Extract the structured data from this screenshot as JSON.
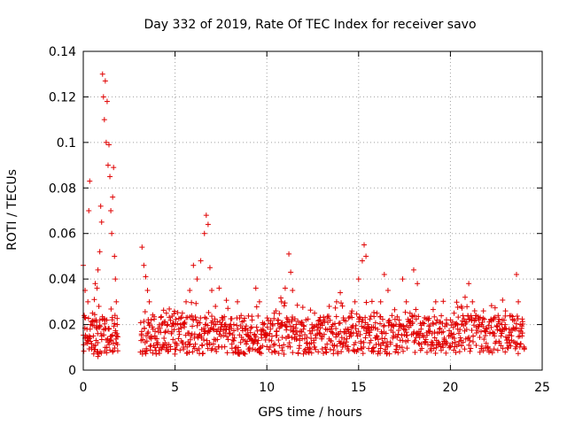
{
  "chart_data": {
    "type": "scatter",
    "title": "Day 332 of 2019, Rate Of TEC Index for receiver savo",
    "xlabel": "GPS time / hours",
    "ylabel": "ROTI / TECUs",
    "xlim": [
      0,
      25
    ],
    "ylim": [
      0,
      0.14
    ],
    "xticks": [
      0,
      5,
      10,
      15,
      20,
      25
    ],
    "yticks": [
      0,
      0.02,
      0.04,
      0.06,
      0.08,
      0.1,
      0.12,
      0.14
    ],
    "grid": true,
    "marker": "plus",
    "color": "#e00000",
    "series": [
      {
        "values": [
          [
            0.0,
            0.046
          ],
          [
            0.05,
            0.024
          ],
          [
            0.1,
            0.035
          ],
          [
            0.15,
            0.012
          ],
          [
            0.2,
            0.018
          ],
          [
            0.25,
            0.03
          ],
          [
            0.3,
            0.07
          ],
          [
            0.35,
            0.083
          ],
          [
            0.4,
            0.02
          ],
          [
            0.45,
            0.01
          ],
          [
            0.5,
            0.025
          ],
          [
            0.55,
            0.015
          ],
          [
            0.6,
            0.031
          ],
          [
            0.65,
            0.038
          ],
          [
            0.7,
            0.022
          ],
          [
            0.75,
            0.036
          ],
          [
            0.8,
            0.044
          ],
          [
            0.85,
            0.028
          ],
          [
            0.9,
            0.052
          ],
          [
            0.95,
            0.072
          ],
          [
            1.0,
            0.065
          ],
          [
            1.05,
            0.13
          ],
          [
            1.1,
            0.12
          ],
          [
            1.15,
            0.11
          ],
          [
            1.2,
            0.127
          ],
          [
            1.25,
            0.1
          ],
          [
            1.3,
            0.118
          ],
          [
            1.35,
            0.09
          ],
          [
            1.4,
            0.099
          ],
          [
            1.45,
            0.085
          ],
          [
            1.5,
            0.07
          ],
          [
            1.55,
            0.06
          ],
          [
            1.6,
            0.076
          ],
          [
            1.65,
            0.089
          ],
          [
            1.7,
            0.05
          ],
          [
            1.75,
            0.04
          ],
          [
            1.8,
            0.03
          ],
          [
            1.85,
            0.02
          ],
          [
            1.0,
            0.015
          ],
          [
            1.2,
            0.01
          ],
          [
            1.4,
            0.018
          ],
          [
            1.6,
            0.008
          ],
          [
            1.8,
            0.012
          ],
          [
            0.8,
            0.006
          ],
          [
            0.6,
            0.009
          ],
          [
            3.2,
            0.054
          ],
          [
            3.3,
            0.046
          ],
          [
            3.4,
            0.041
          ],
          [
            3.5,
            0.035
          ],
          [
            3.6,
            0.03
          ],
          [
            3.7,
            0.022
          ],
          [
            3.8,
            0.018
          ],
          [
            3.9,
            0.015
          ],
          [
            4.0,
            0.012
          ],
          [
            4.2,
            0.01
          ],
          [
            4.4,
            0.014
          ],
          [
            4.6,
            0.02
          ],
          [
            4.8,
            0.016
          ],
          [
            5.0,
            0.012
          ],
          [
            5.2,
            0.018
          ],
          [
            5.4,
            0.025
          ],
          [
            5.6,
            0.03
          ],
          [
            5.8,
            0.035
          ],
          [
            6.0,
            0.046
          ],
          [
            6.2,
            0.04
          ],
          [
            6.4,
            0.048
          ],
          [
            6.6,
            0.06
          ],
          [
            6.7,
            0.068
          ],
          [
            6.8,
            0.064
          ],
          [
            6.9,
            0.045
          ],
          [
            7.0,
            0.035
          ],
          [
            7.2,
            0.028
          ],
          [
            7.4,
            0.036
          ],
          [
            7.6,
            0.022
          ],
          [
            7.8,
            0.018
          ],
          [
            8.0,
            0.016
          ],
          [
            8.2,
            0.02
          ],
          [
            8.4,
            0.03
          ],
          [
            8.6,
            0.024
          ],
          [
            8.8,
            0.018
          ],
          [
            9.0,
            0.015
          ],
          [
            9.2,
            0.022
          ],
          [
            9.4,
            0.036
          ],
          [
            9.6,
            0.03
          ],
          [
            9.8,
            0.02
          ],
          [
            10.0,
            0.015
          ],
          [
            10.2,
            0.018
          ],
          [
            10.4,
            0.025
          ],
          [
            10.6,
            0.022
          ],
          [
            10.8,
            0.03
          ],
          [
            11.0,
            0.036
          ],
          [
            11.2,
            0.051
          ],
          [
            11.3,
            0.043
          ],
          [
            11.4,
            0.035
          ],
          [
            11.6,
            0.02
          ],
          [
            11.8,
            0.015
          ],
          [
            12.0,
            0.018
          ],
          [
            12.2,
            0.012
          ],
          [
            12.4,
            0.016
          ],
          [
            12.6,
            0.025
          ],
          [
            12.8,
            0.02
          ],
          [
            13.0,
            0.015
          ],
          [
            13.2,
            0.018
          ],
          [
            13.4,
            0.028
          ],
          [
            13.6,
            0.02
          ],
          [
            13.8,
            0.03
          ],
          [
            14.0,
            0.034
          ],
          [
            14.2,
            0.022
          ],
          [
            14.4,
            0.018
          ],
          [
            14.6,
            0.025
          ],
          [
            14.8,
            0.03
          ],
          [
            15.0,
            0.04
          ],
          [
            15.2,
            0.048
          ],
          [
            15.3,
            0.055
          ],
          [
            15.4,
            0.05
          ],
          [
            15.5,
            0.02
          ],
          [
            15.6,
            0.012
          ],
          [
            15.8,
            0.008
          ],
          [
            16.0,
            0.025
          ],
          [
            16.2,
            0.03
          ],
          [
            16.4,
            0.042
          ],
          [
            16.6,
            0.035
          ],
          [
            16.8,
            0.02
          ],
          [
            17.0,
            0.015
          ],
          [
            17.2,
            0.022
          ],
          [
            17.4,
            0.04
          ],
          [
            17.6,
            0.03
          ],
          [
            17.8,
            0.025
          ],
          [
            18.0,
            0.044
          ],
          [
            18.2,
            0.038
          ],
          [
            18.4,
            0.018
          ],
          [
            18.6,
            0.012
          ],
          [
            18.8,
            0.022
          ],
          [
            19.0,
            0.016
          ],
          [
            19.2,
            0.03
          ],
          [
            19.4,
            0.018
          ],
          [
            19.6,
            0.01
          ],
          [
            19.8,
            0.012
          ],
          [
            20.0,
            0.022
          ],
          [
            20.2,
            0.025
          ],
          [
            20.4,
            0.018
          ],
          [
            20.6,
            0.028
          ],
          [
            20.8,
            0.032
          ],
          [
            21.0,
            0.038
          ],
          [
            21.2,
            0.03
          ],
          [
            21.4,
            0.024
          ],
          [
            21.6,
            0.02
          ],
          [
            21.8,
            0.026
          ],
          [
            22.0,
            0.018
          ],
          [
            22.2,
            0.022
          ],
          [
            22.4,
            0.016
          ],
          [
            22.6,
            0.024
          ],
          [
            22.8,
            0.02
          ],
          [
            23.0,
            0.026
          ],
          [
            23.2,
            0.018
          ],
          [
            23.4,
            0.022
          ],
          [
            23.6,
            0.042
          ],
          [
            23.7,
            0.03
          ],
          [
            23.8,
            0.02
          ],
          [
            23.9,
            0.015
          ]
        ]
      }
    ],
    "band": {
      "segments": [
        [
          0,
          1.9
        ],
        [
          3.1,
          19.8
        ],
        [
          19.9,
          24
        ]
      ],
      "ymin": 0.007,
      "ymax": 0.024
    }
  }
}
